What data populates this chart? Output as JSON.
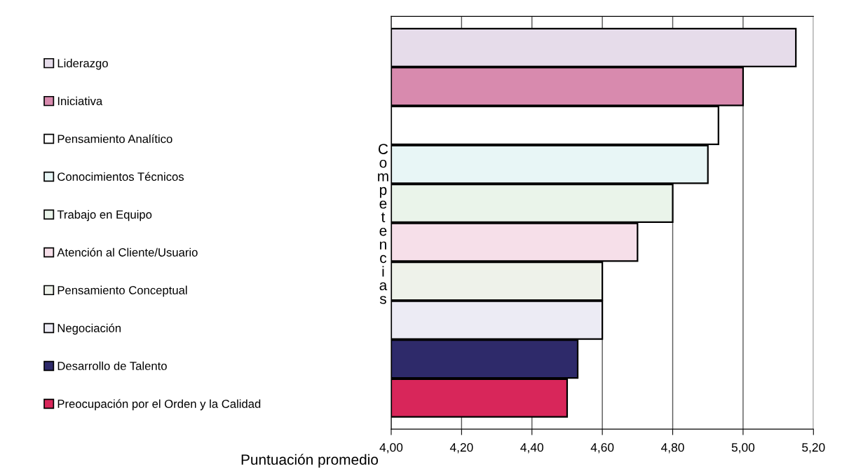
{
  "chart_data": {
    "type": "bar",
    "orientation": "horizontal",
    "categories": [
      null,
      null,
      null,
      null,
      null,
      null,
      null,
      null,
      null,
      null
    ],
    "series": [
      {
        "name": "Liderazgo",
        "color": "#e6dcea",
        "values": [
          5.15,
          null,
          null,
          null,
          null,
          null,
          null,
          null,
          null,
          null
        ]
      },
      {
        "name": "Iniciativa",
        "color": "#d88aae",
        "values": [
          null,
          5.0,
          null,
          null,
          null,
          null,
          null,
          null,
          null,
          null
        ]
      },
      {
        "name": "Pensamiento Analítico",
        "color": "#ffffff",
        "values": [
          null,
          null,
          4.93,
          null,
          null,
          null,
          null,
          null,
          null,
          null
        ]
      },
      {
        "name": "Conocimientos Técnicos",
        "color": "#e8f6f6",
        "values": [
          null,
          null,
          null,
          4.9,
          null,
          null,
          null,
          null,
          null,
          null
        ]
      },
      {
        "name": "Trabajo en Equipo",
        "color": "#eaf4ea",
        "values": [
          null,
          null,
          null,
          null,
          4.8,
          null,
          null,
          null,
          null,
          null
        ]
      },
      {
        "name": "Atención al Cliente/Usuario",
        "color": "#f6dfe9",
        "values": [
          null,
          null,
          null,
          null,
          null,
          4.7,
          null,
          null,
          null,
          null
        ]
      },
      {
        "name": "Pensamiento Conceptual",
        "color": "#eef2ea",
        "values": [
          null,
          null,
          null,
          null,
          null,
          null,
          4.6,
          null,
          null,
          null
        ]
      },
      {
        "name": "Negociación",
        "color": "#ecebf4",
        "values": [
          null,
          null,
          null,
          null,
          null,
          null,
          null,
          4.6,
          null,
          null
        ]
      },
      {
        "name": "Desarrollo de Talento",
        "color": "#2e2a6a",
        "values": [
          null,
          null,
          null,
          null,
          null,
          null,
          null,
          null,
          4.53,
          null
        ]
      },
      {
        "name": "Preocupación por el Orden y la Calidad",
        "color": "#d8265a",
        "values": [
          null,
          null,
          null,
          null,
          null,
          null,
          null,
          null,
          null,
          4.5
        ]
      }
    ],
    "xlabel": "Puntuación promedio",
    "ylabel": "Competencias",
    "xlim": [
      4.0,
      5.2
    ],
    "xticks": [
      {
        "value": 4.0,
        "label": "4,00"
      },
      {
        "value": 4.2,
        "label": "4,20"
      },
      {
        "value": 4.4,
        "label": "4,40"
      },
      {
        "value": 4.6,
        "label": "4,60"
      },
      {
        "value": 4.8,
        "label": "4,80"
      },
      {
        "value": 5.0,
        "label": "5,00"
      },
      {
        "value": 5.2,
        "label": "5,20"
      }
    ],
    "grid": "x",
    "legend": "left",
    "tick_labels": "x"
  }
}
